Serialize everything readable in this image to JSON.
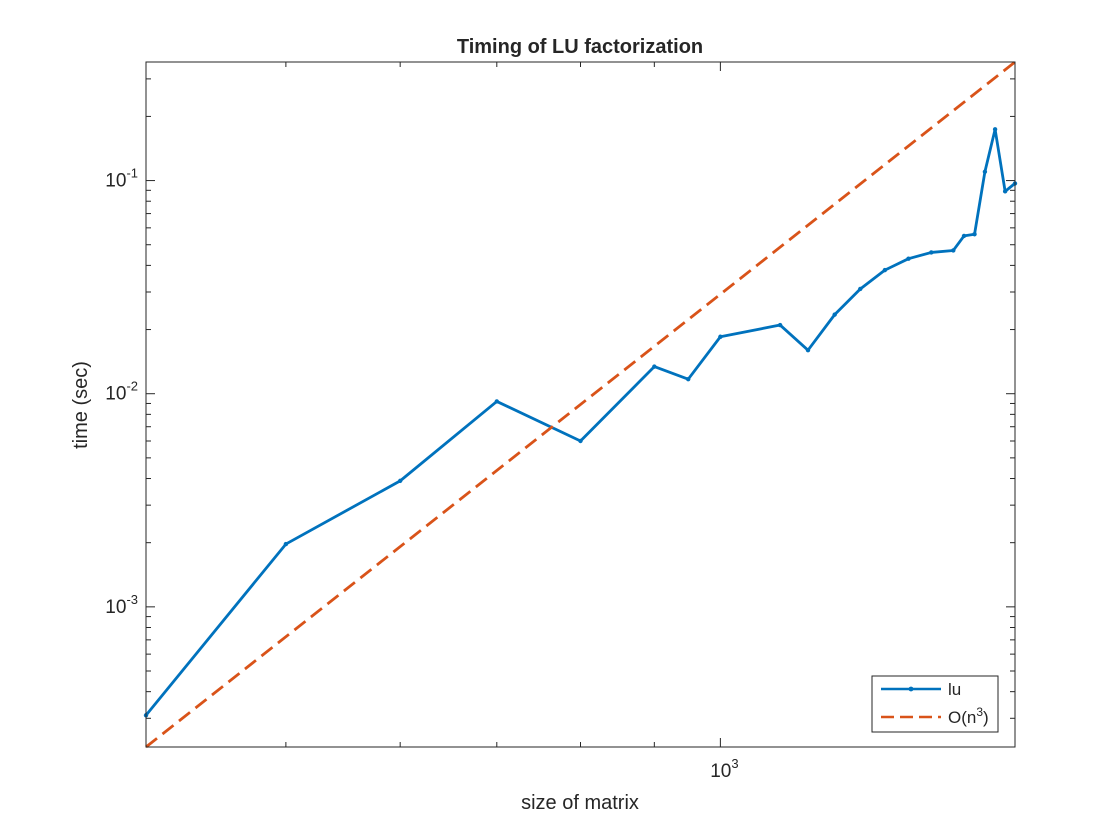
{
  "chart_data": {
    "type": "line",
    "title": "Timing of LU factorization",
    "xlabel": "size of matrix",
    "ylabel": "time (sec)",
    "xscale": "log",
    "yscale": "log",
    "xlim": [
      400,
      1600
    ],
    "ylim": [
      0.00022,
      0.36
    ],
    "xticks": [
      {
        "base": "10",
        "exp": "3",
        "value": 1000
      }
    ],
    "yticks": [
      {
        "base": "10",
        "exp": "-3",
        "value": 0.001
      },
      {
        "base": "10",
        "exp": "-2",
        "value": 0.01
      },
      {
        "base": "10",
        "exp": "-1",
        "value": 0.1
      }
    ],
    "grid": false,
    "legend": "bottom-right",
    "series": [
      {
        "name": "lu",
        "color": "#0072BD",
        "style": "solid-with-dots",
        "x": [
          400,
          500,
          600,
          700,
          800,
          900,
          950,
          1000,
          1100,
          1150,
          1200,
          1250,
          1300,
          1350,
          1400,
          1450,
          1475,
          1500,
          1525,
          1550,
          1575,
          1600
        ],
        "y": [
          0.00031,
          0.00197,
          0.0039,
          0.0092,
          0.006,
          0.0134,
          0.0117,
          0.0185,
          0.021,
          0.016,
          0.0235,
          0.031,
          0.038,
          0.043,
          0.046,
          0.047,
          0.055,
          0.056,
          0.11,
          0.174,
          0.089,
          0.097
        ]
      },
      {
        "name": "O(n",
        "name_sup": "3",
        "name_suffix": ")",
        "color": "#D95319",
        "style": "dashed",
        "x": [
          400,
          1600
        ],
        "y": [
          0.00022,
          0.36
        ]
      }
    ]
  }
}
